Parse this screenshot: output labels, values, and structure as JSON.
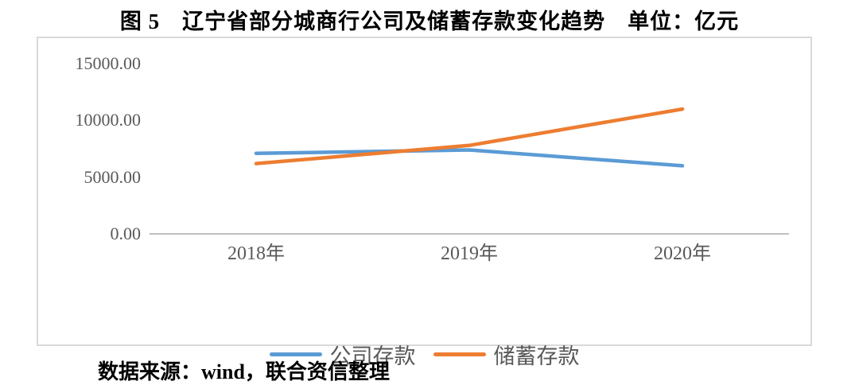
{
  "header": {
    "title": "图 5　辽宁省部分城商行公司及储蓄存款变化趋势　单位：亿元"
  },
  "chart_data": {
    "type": "line",
    "title": "图 5 辽宁省部分城商行公司及储蓄存款变化趋势",
    "unit_label": "单位：亿元",
    "categories": [
      "2018年",
      "2019年",
      "2020年"
    ],
    "series": [
      {
        "name": "公司存款",
        "color": "#5B9BD5",
        "values": [
          7100,
          7400,
          6000
        ]
      },
      {
        "name": "储蓄存款",
        "color": "#ED7D31",
        "values": [
          6200,
          7800,
          11000
        ]
      }
    ],
    "ylim": [
      0,
      15000
    ],
    "ytick_labels": [
      "15000.00",
      "10000.00",
      "5000.00",
      "0.00"
    ],
    "ytick_values": [
      15000,
      10000,
      5000,
      0
    ],
    "grid": false,
    "legend_position": "bottom",
    "axis_line_color": "#bfbfbf",
    "border_color": "#d9d9d9",
    "tick_text_color": "#595959"
  },
  "footer": {
    "source_text": "数据来源：wind，联合资信整理"
  }
}
